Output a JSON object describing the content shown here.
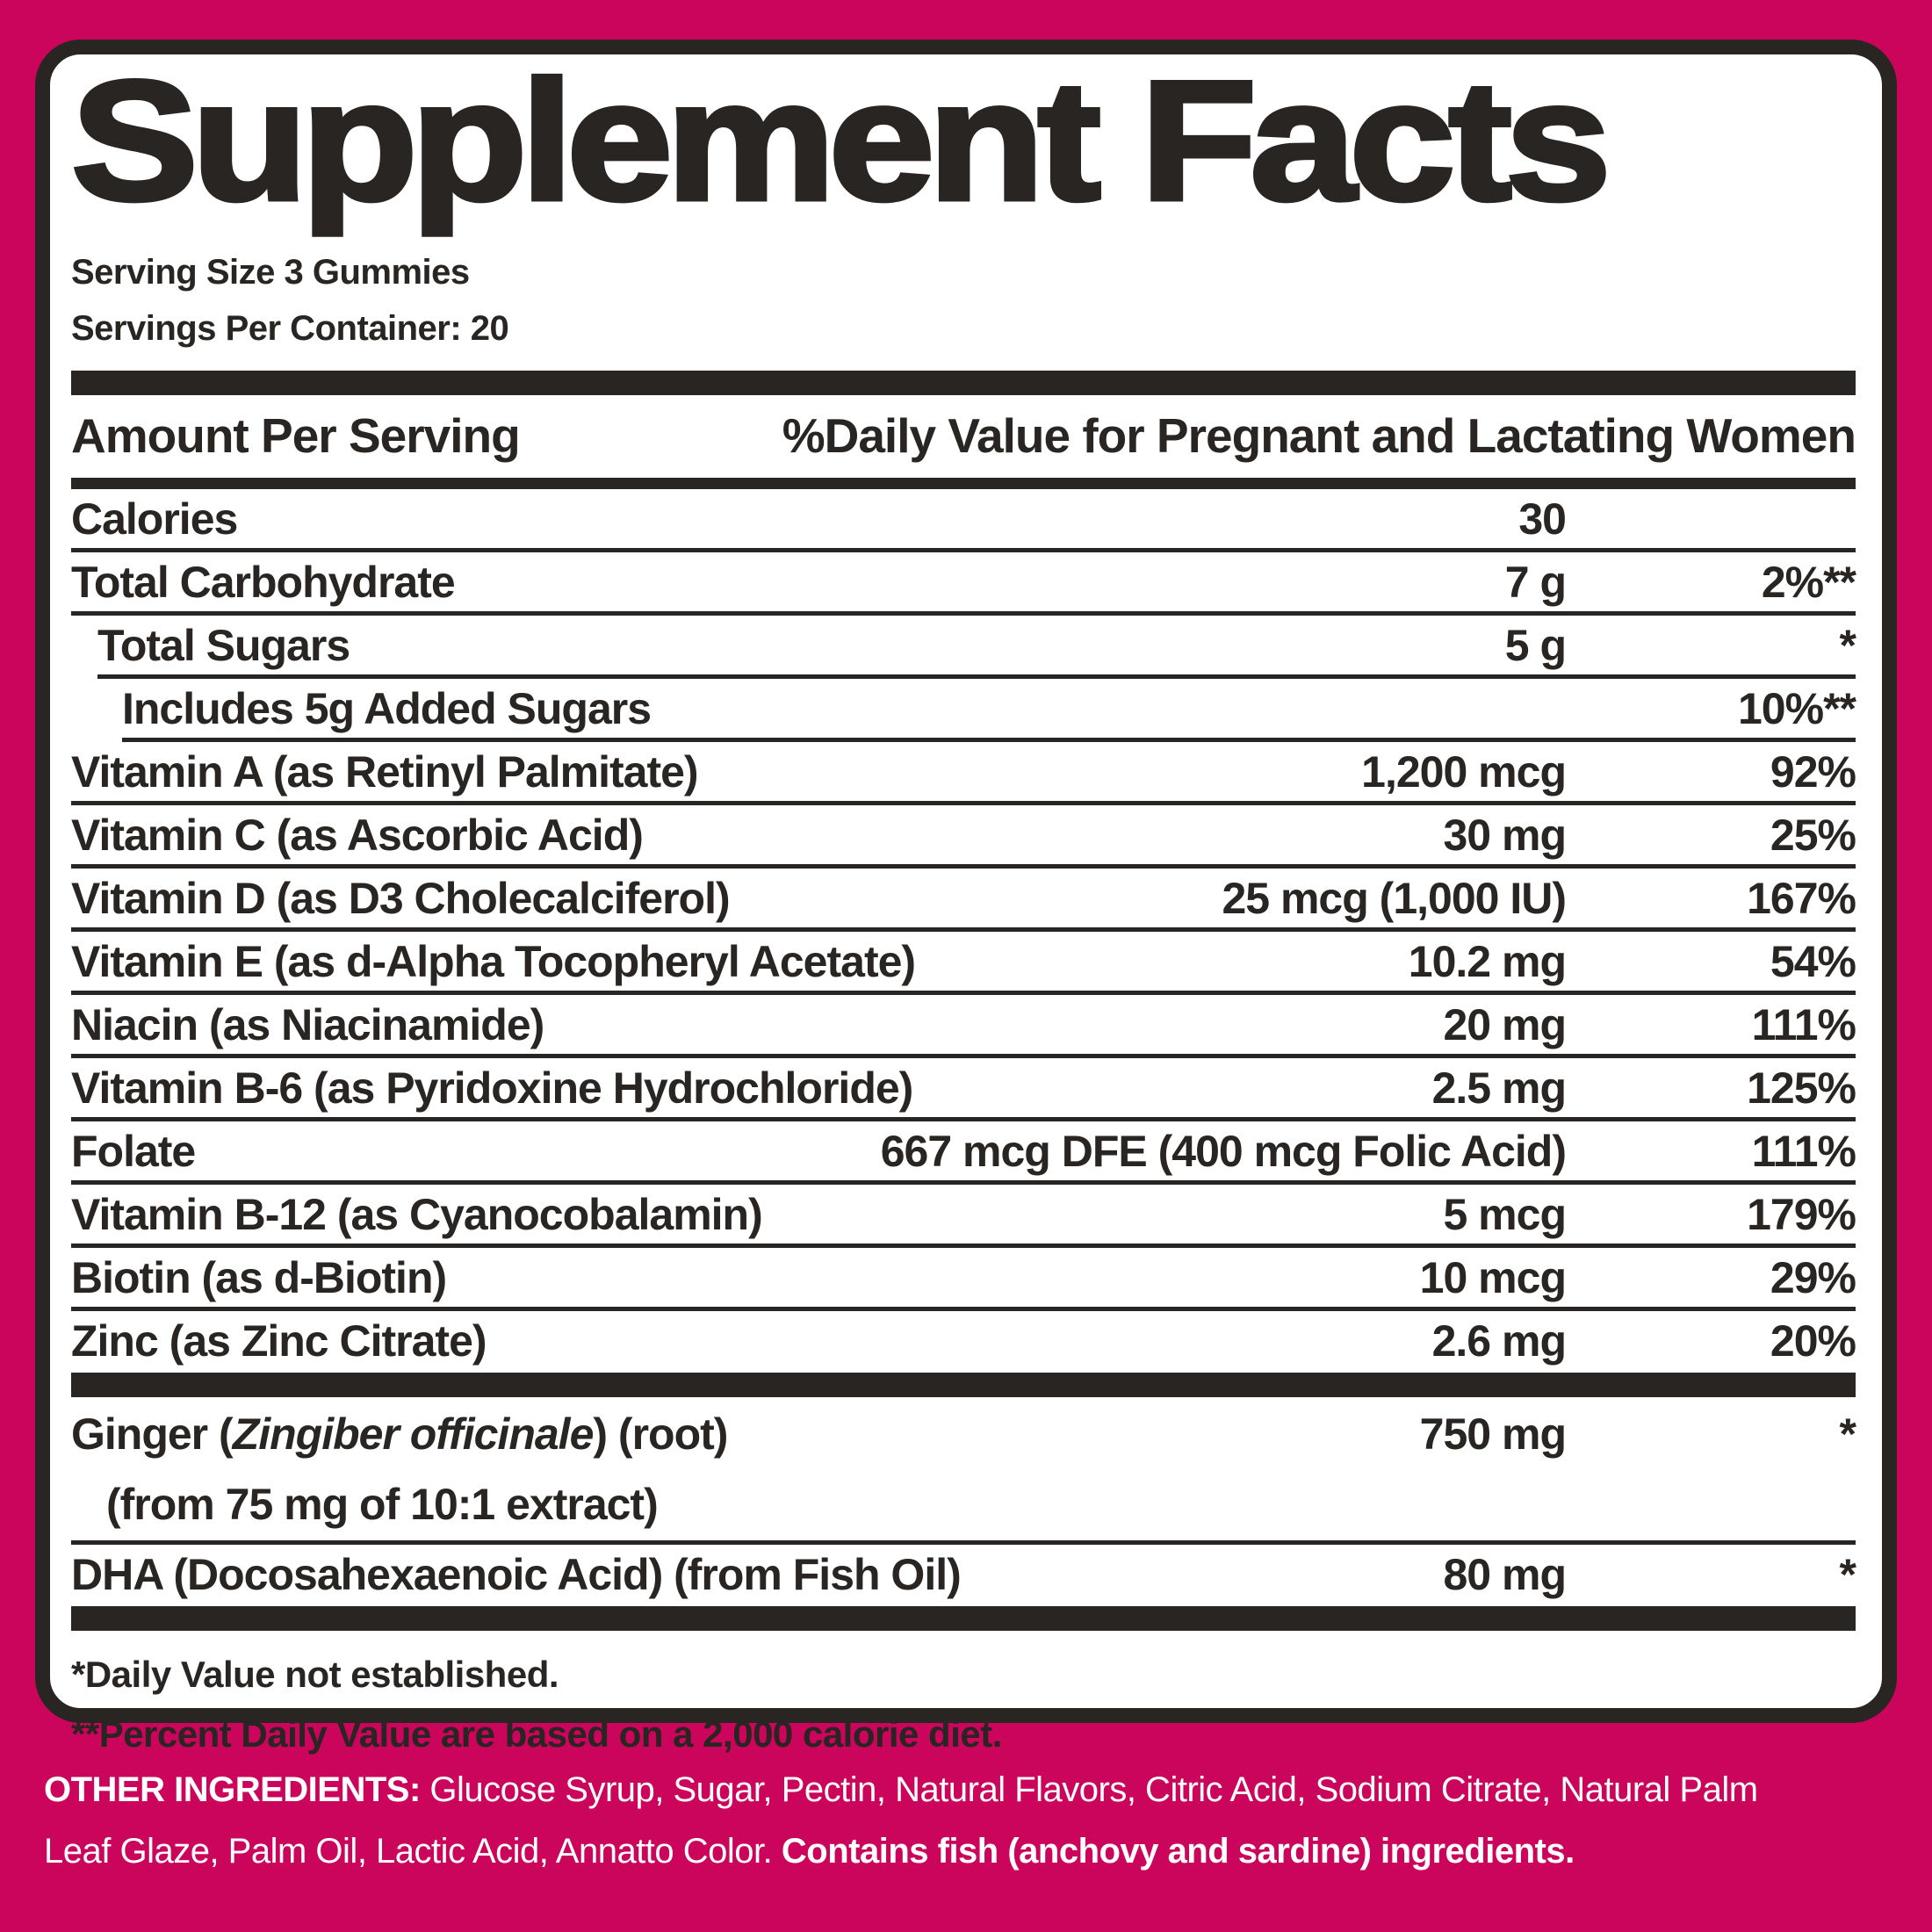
{
  "colors": {
    "background_pink": "#CB045C",
    "ink": "#282522",
    "panel_white": "#FFFFFF",
    "ingredients_text": "#FFFFFF"
  },
  "label": {
    "title": "Supplement Facts",
    "serving_size": "Serving Size 3 Gummies",
    "servings_per_container": "Servings Per Container: 20",
    "column_header_left": "Amount Per Serving",
    "column_header_right": "%Daily Value for Pregnant and Lactating Women",
    "rows": [
      {
        "name": "Calories",
        "amount": "30",
        "daily_value": "",
        "indent": 0,
        "sep": "thin"
      },
      {
        "name": "Total Carbohydrate",
        "amount": "7 g",
        "daily_value": "2%**",
        "indent": 0,
        "sep": "thin"
      },
      {
        "name": "Total Sugars",
        "amount": "5 g",
        "daily_value": "*",
        "indent": 1,
        "sep": "thin"
      },
      {
        "name": "Includes 5g Added Sugars",
        "amount": "",
        "daily_value": "10%**",
        "indent": 2,
        "sep": "thin"
      },
      {
        "name": "Vitamin A (as Retinyl Palmitate)",
        "amount": "1,200 mcg",
        "daily_value": "92%",
        "indent": 0,
        "sep": "thin"
      },
      {
        "name": "Vitamin C (as Ascorbic Acid)",
        "amount": "30 mg",
        "daily_value": "25%",
        "indent": 0,
        "sep": "thin"
      },
      {
        "name": "Vitamin D (as D3 Cholecalciferol)",
        "amount": "25 mcg (1,000 IU)",
        "daily_value": "167%",
        "indent": 0,
        "sep": "thin"
      },
      {
        "name": "Vitamin E (as d-Alpha Tocopheryl Acetate)",
        "amount": "10.2 mg",
        "daily_value": "54%",
        "indent": 0,
        "sep": "thin"
      },
      {
        "name": "Niacin (as Niacinamide)",
        "amount": "20 mg",
        "daily_value": "111%",
        "indent": 0,
        "sep": "thin"
      },
      {
        "name": "Vitamin B-6 (as Pyridoxine Hydrochloride)",
        "amount": "2.5 mg",
        "daily_value": "125%",
        "indent": 0,
        "sep": "thin"
      },
      {
        "name": "Folate",
        "amount": "667 mcg DFE (400 mcg Folic Acid)",
        "daily_value": "111%",
        "indent": 0,
        "sep": "thin"
      },
      {
        "name": "Vitamin B-12 (as Cyanocobalamin)",
        "amount": "5 mcg",
        "daily_value": "179%",
        "indent": 0,
        "sep": "thin"
      },
      {
        "name": "Biotin (as d-Biotin)",
        "amount": "10 mcg",
        "daily_value": "29%",
        "indent": 0,
        "sep": "thin"
      },
      {
        "name": "Zinc (as Zinc Citrate)",
        "amount": "2.6 mg",
        "daily_value": "20%",
        "indent": 0,
        "sep": "thick"
      },
      {
        "name_parts": [
          {
            "text": "Ginger ("
          },
          {
            "text": "Zingiber officinale",
            "italic": true
          },
          {
            "text": ") (root)"
          }
        ],
        "line2": "(from 75 mg of 10:1 extract)",
        "amount": "750 mg",
        "daily_value": "*",
        "indent": 0,
        "sep": "thin",
        "twoline": true
      },
      {
        "name": "DHA (Docosahexaenoic Acid) (from Fish Oil)",
        "amount": "80 mg",
        "daily_value": "*",
        "indent": 0,
        "sep": "thick"
      }
    ],
    "footnotes": [
      "*Daily Value not established.",
      "**Percent Daily Value are based on a 2,000 calorie diet."
    ],
    "other_ingredients": {
      "label_bold": "OTHER INGREDIENTS:",
      "line1_rest": " Glucose Syrup, Sugar, Pectin, Natural Flavors, Citric Acid, Sodium Citrate, Natural Palm",
      "line2_text": "Leaf Glaze, Palm Oil, Lactic Acid, Annatto Color. ",
      "line2_bold": "Contains fish (anchovy and sardine) ingredients."
    }
  }
}
